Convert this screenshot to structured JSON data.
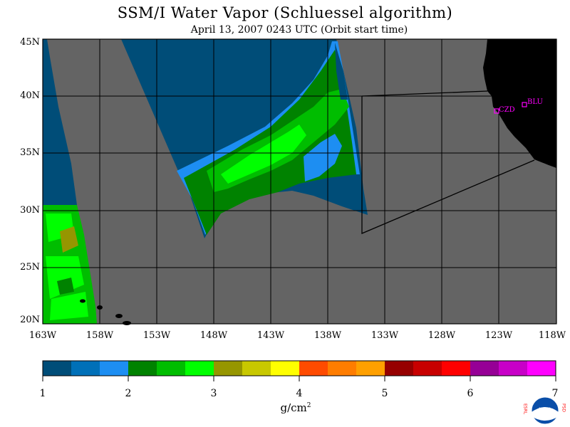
{
  "title": "SSM/I Water Vapor (Schluessel algorithm)",
  "subtitle": "April 13, 2007  0243 UTC  (Orbit start time)",
  "map": {
    "lat_labels": [
      "45N",
      "40N",
      "35N",
      "30N",
      "25N",
      "20N"
    ],
    "lon_labels": [
      "163W",
      "158W",
      "153W",
      "148W",
      "143W",
      "138W",
      "133W",
      "128W",
      "123W",
      "118W"
    ],
    "stations": [
      {
        "code": "CZD"
      },
      {
        "code": "BLU"
      }
    ],
    "colors": {
      "no_data": "#646464",
      "land": "#000000",
      "grid": "#000000",
      "station": "#ff00ff"
    }
  },
  "legend": {
    "colors": [
      "#004d78",
      "#0070b8",
      "#1d8ef2",
      "#008200",
      "#00bd00",
      "#00ff00",
      "#969600",
      "#c8c800",
      "#ffff00",
      "#ff4b00",
      "#ff7d00",
      "#ffa000",
      "#960000",
      "#c80000",
      "#ff0000",
      "#960096",
      "#c800c8",
      "#ff00ff"
    ],
    "ticks": [
      "1",
      "2",
      "3",
      "4",
      "5",
      "6",
      "7"
    ],
    "units": "g/cm",
    "units_exponent": "2"
  },
  "logo": {
    "left_text": "ESRL",
    "right_text": "PSD",
    "center_text": "NOAA"
  }
}
